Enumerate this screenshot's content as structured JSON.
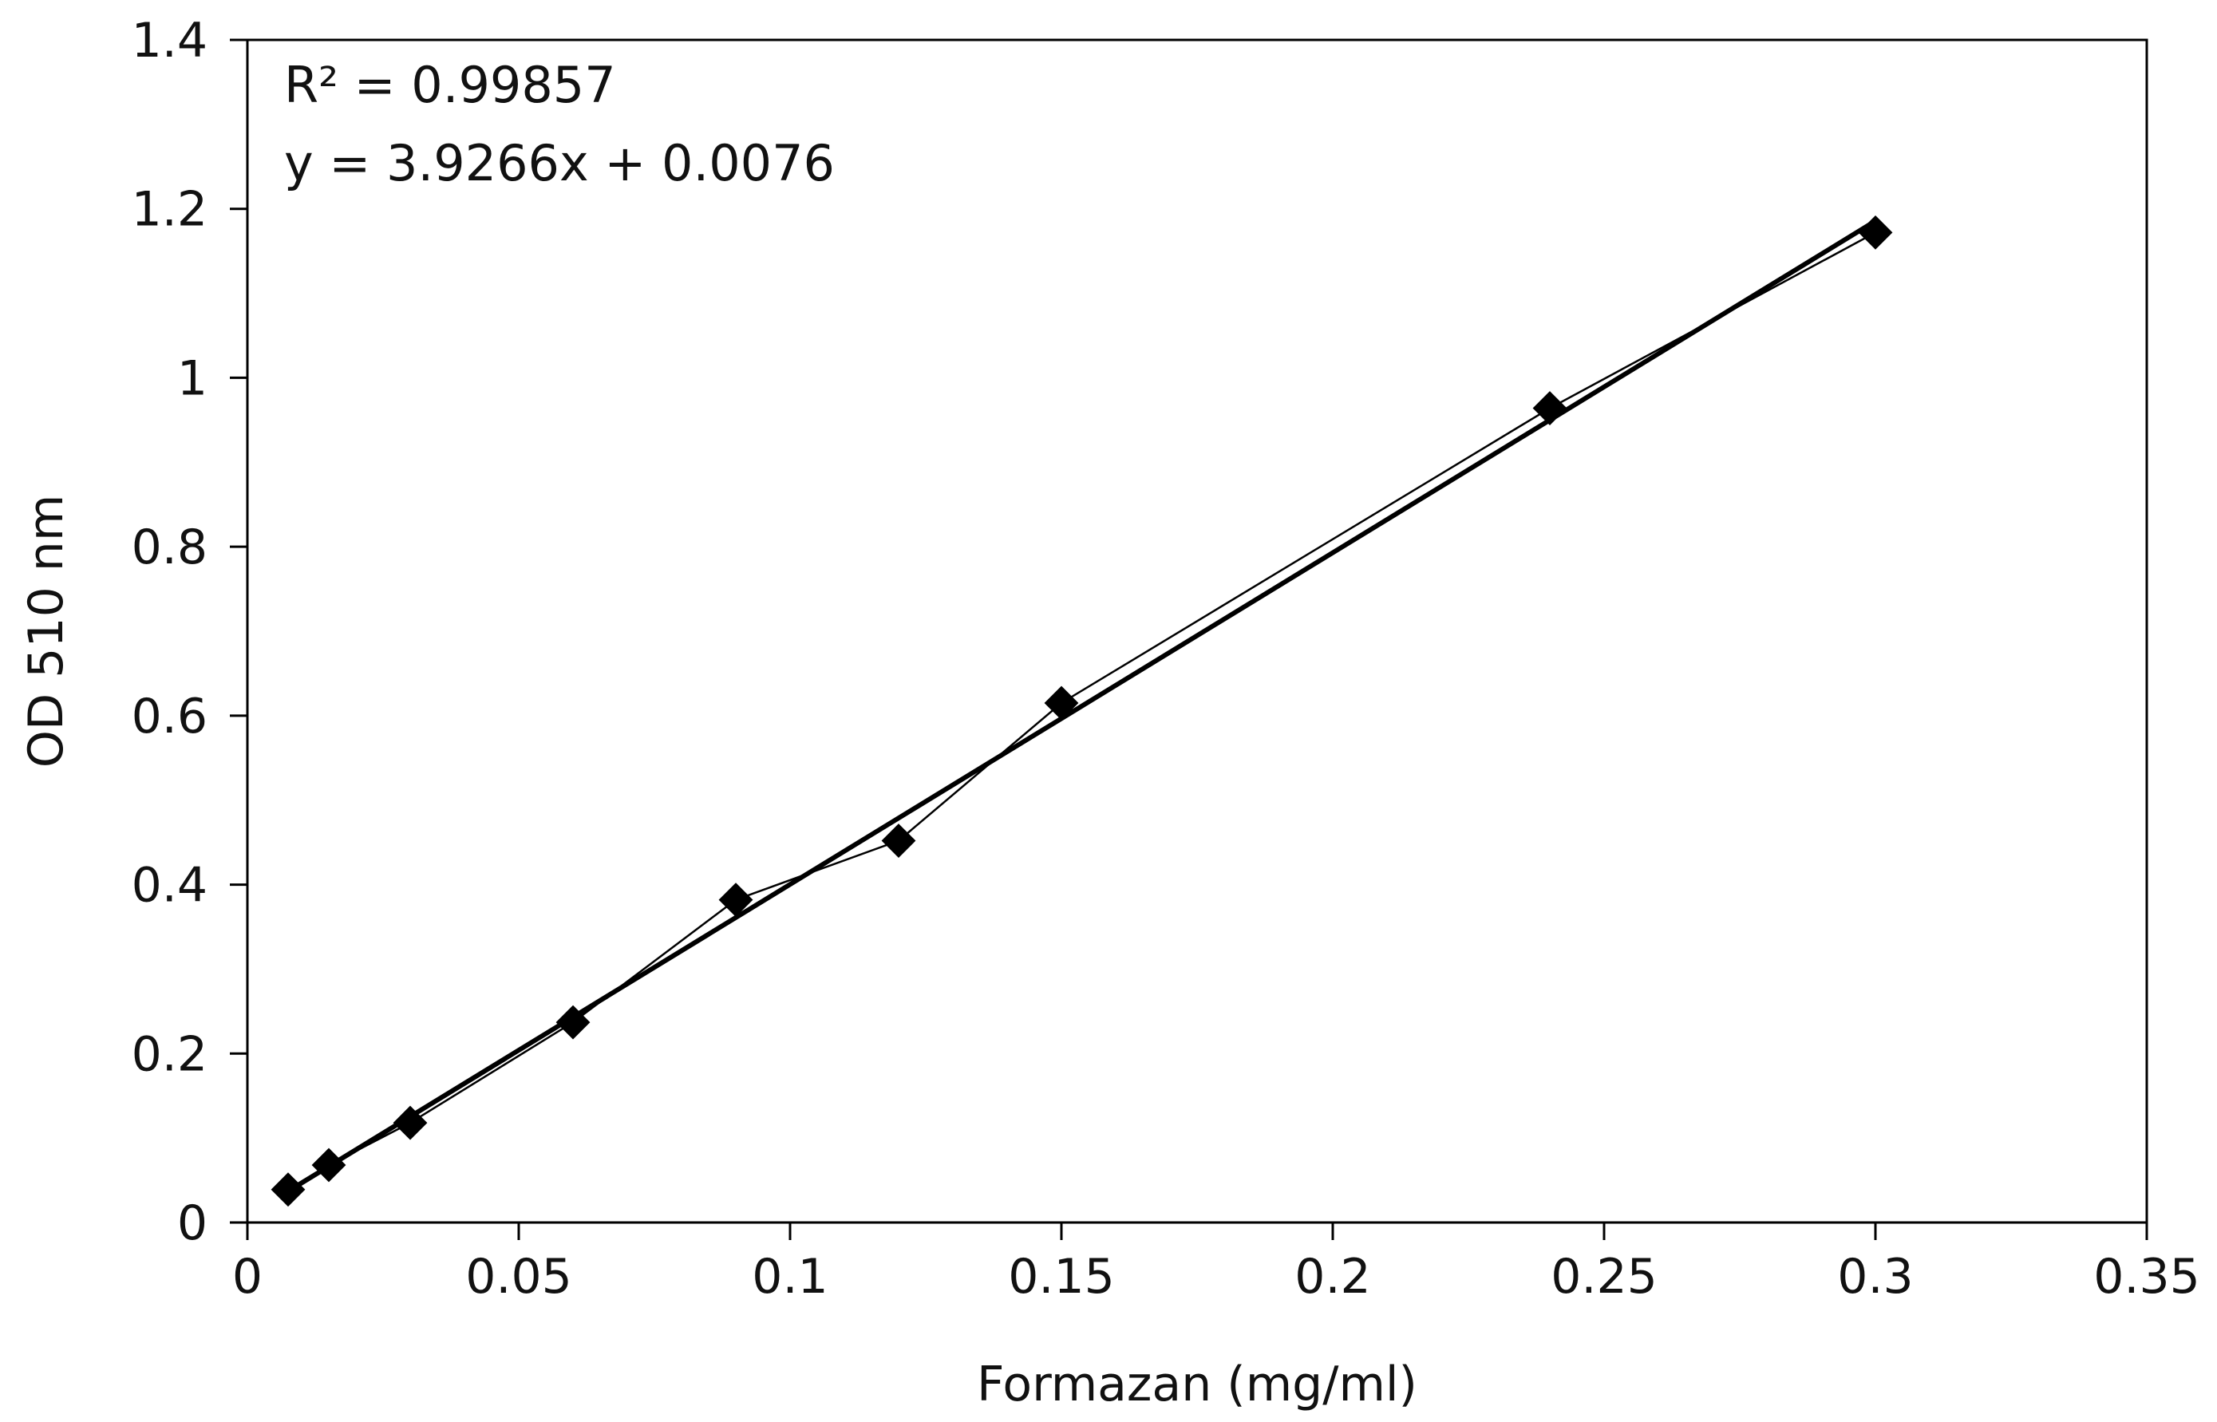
{
  "chart_data": {
    "type": "scatter",
    "title": "",
    "xlabel": "Formazan (mg/ml)",
    "ylabel": "OD 510 nm",
    "xlim": [
      0,
      0.35
    ],
    "ylim": [
      0,
      1.4
    ],
    "x_ticks": [
      0,
      0.05,
      0.1,
      0.15,
      0.2,
      0.25,
      0.3,
      0.35
    ],
    "x_tick_labels": [
      "0",
      "0.05",
      "0.1",
      "0.15",
      "0.2",
      "0.25",
      "0.3",
      "0.35"
    ],
    "y_ticks": [
      0,
      0.2,
      0.4,
      0.6,
      0.8,
      1.0,
      1.2,
      1.4
    ],
    "y_tick_labels": [
      "0",
      "0.2",
      "0.4",
      "0.6",
      "0.8",
      "1",
      "1.2",
      "1.4"
    ],
    "grid": false,
    "legend": "none",
    "series": [
      {
        "marker": "diamond",
        "connected": true,
        "color": "#000000",
        "x": [
          0.0075,
          0.015,
          0.03,
          0.06,
          0.09,
          0.12,
          0.15,
          0.24,
          0.3
        ],
        "y": [
          0.039,
          0.068,
          0.118,
          0.237,
          0.382,
          0.452,
          0.615,
          0.964,
          1.172
        ]
      }
    ],
    "trendline": {
      "type": "linear",
      "slope": 3.9266,
      "intercept": 0.0076,
      "x_range": [
        0.0075,
        0.3
      ]
    },
    "annotations": {
      "r_squared": "R² = 0.99857",
      "equation": "y = 3.9266x + 0.0076"
    }
  }
}
